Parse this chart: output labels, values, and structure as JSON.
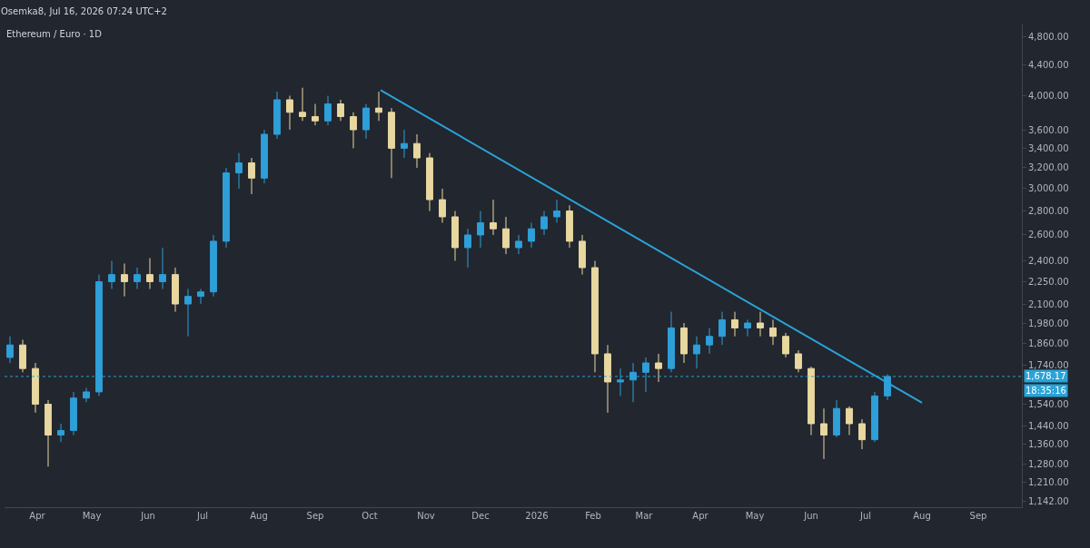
{
  "chart_data": {
    "type": "candlestick",
    "title": "Ethereum / Euro · 1D",
    "annotations": [
      "Osemka8, Jul 16, 2026 07:24 UTC+2",
      "18:35:16"
    ],
    "log": "y",
    "grid": false,
    "xlim": [
      "2025-03-14",
      "2026-09-25"
    ],
    "xticks": [
      {
        "value": "2025-04-01",
        "label": "Apr"
      },
      {
        "value": "2025-05-01",
        "label": "May"
      },
      {
        "value": "2025-06-01",
        "label": "Jun"
      },
      {
        "value": "2025-07-01",
        "label": "Jul"
      },
      {
        "value": "2025-08-01",
        "label": "Aug"
      },
      {
        "value": "2025-09-01",
        "label": "Sep"
      },
      {
        "value": "2025-10-01",
        "label": "Oct"
      },
      {
        "value": "2025-11-01",
        "label": "Nov"
      },
      {
        "value": "2025-12-01",
        "label": "Dec"
      },
      {
        "value": "2026-01-01",
        "label": "2026"
      },
      {
        "value": "2026-02-01",
        "label": "Feb"
      },
      {
        "value": "2026-03-01",
        "label": "Mar"
      },
      {
        "value": "2026-04-01",
        "label": "Apr"
      },
      {
        "value": "2026-05-01",
        "label": "May"
      },
      {
        "value": "2026-06-01",
        "label": "Jun"
      },
      {
        "value": "2026-07-01",
        "label": "Jul"
      },
      {
        "value": "2026-08-01",
        "label": "Aug"
      },
      {
        "value": "2026-09-01",
        "label": "Sep"
      }
    ],
    "ylim": [
      1120,
      5000
    ],
    "yticks": [
      {
        "value": 1142,
        "label": "1,142.00"
      },
      {
        "value": 1210,
        "label": "1,210.00"
      },
      {
        "value": 1280,
        "label": "1,280.00"
      },
      {
        "value": 1360,
        "label": "1,360.00"
      },
      {
        "value": 1440,
        "label": "1,440.00"
      },
      {
        "value": 1540,
        "label": "1,540.00"
      },
      {
        "value": 1740,
        "label": "1,740.00"
      },
      {
        "value": 1860,
        "label": "1,860.00"
      },
      {
        "value": 1980,
        "label": "1,980.00"
      },
      {
        "value": 2100,
        "label": "2,100.00"
      },
      {
        "value": 2250,
        "label": "2,250.00"
      },
      {
        "value": 2400,
        "label": "2,400.00"
      },
      {
        "value": 2600,
        "label": "2,600.00"
      },
      {
        "value": 2800,
        "label": "2,800.00"
      },
      {
        "value": 3000,
        "label": "3,000.00"
      },
      {
        "value": 3200,
        "label": "3,200.00"
      },
      {
        "value": 3400,
        "label": "3,400.00"
      },
      {
        "value": 3600,
        "label": "3,600.00"
      },
      {
        "value": 4000,
        "label": "4,000.00"
      },
      {
        "value": 4400,
        "label": "4,400.00"
      },
      {
        "value": 4800,
        "label": "4,800.00"
      }
    ],
    "ref_lines": [
      {
        "axis": "y",
        "value": 1678.17,
        "label": "1,678.17",
        "color": "#29a3d8",
        "line_style": "dotted"
      }
    ],
    "series": [
      {
        "x": [
          "2025-03-17",
          "2025-03-24",
          "2025-03-31",
          "2025-04-07",
          "2025-04-14",
          "2025-04-21",
          "2025-04-28",
          "2025-05-05",
          "2025-05-12",
          "2025-05-19",
          "2025-05-26",
          "2025-06-02",
          "2025-06-09",
          "2025-06-16",
          "2025-06-23",
          "2025-06-30",
          "2025-07-07",
          "2025-07-14",
          "2025-07-21",
          "2025-07-28",
          "2025-08-04",
          "2025-08-11",
          "2025-08-18",
          "2025-08-25",
          "2025-09-01",
          "2025-09-08",
          "2025-09-15",
          "2025-09-22",
          "2025-09-29",
          "2025-10-06",
          "2025-10-13",
          "2025-10-20",
          "2025-10-27",
          "2025-11-03",
          "2025-11-10",
          "2025-11-17",
          "2025-11-24",
          "2025-12-01",
          "2025-12-08",
          "2025-12-15",
          "2025-12-22",
          "2025-12-29",
          "2026-01-05",
          "2026-01-12",
          "2026-01-19",
          "2026-01-26",
          "2026-02-02",
          "2026-02-09",
          "2026-02-16",
          "2026-02-23",
          "2026-03-02",
          "2026-03-09",
          "2026-03-16",
          "2026-03-23",
          "2026-03-30",
          "2026-04-06",
          "2026-04-13",
          "2026-04-20",
          "2026-04-27",
          "2026-05-04",
          "2026-05-11",
          "2026-05-18",
          "2026-05-25",
          "2026-06-01",
          "2026-06-08",
          "2026-06-15",
          "2026-06-22",
          "2026-06-29",
          "2026-07-06",
          "2026-07-13"
        ],
        "ohlc": [
          [
            1780,
            1900,
            1750,
            1850
          ],
          [
            1850,
            1880,
            1700,
            1720
          ],
          [
            1720,
            1750,
            1500,
            1540
          ],
          [
            1540,
            1560,
            1270,
            1400
          ],
          [
            1400,
            1450,
            1370,
            1420
          ],
          [
            1420,
            1600,
            1400,
            1570
          ],
          [
            1570,
            1620,
            1550,
            1600
          ],
          [
            1600,
            2300,
            1580,
            2250
          ],
          [
            2250,
            2400,
            2200,
            2300
          ],
          [
            2300,
            2380,
            2150,
            2250
          ],
          [
            2250,
            2350,
            2200,
            2300
          ],
          [
            2300,
            2420,
            2200,
            2250
          ],
          [
            2250,
            2500,
            2200,
            2300
          ],
          [
            2300,
            2350,
            2050,
            2100
          ],
          [
            2100,
            2200,
            1900,
            2150
          ],
          [
            2150,
            2200,
            2100,
            2180
          ],
          [
            2180,
            2600,
            2150,
            2550
          ],
          [
            2550,
            3200,
            2500,
            3150
          ],
          [
            3150,
            3350,
            3000,
            3250
          ],
          [
            3250,
            3300,
            2950,
            3100
          ],
          [
            3100,
            3600,
            3050,
            3550
          ],
          [
            3550,
            4050,
            3500,
            3950
          ],
          [
            3950,
            4000,
            3600,
            3800
          ],
          [
            3800,
            4100,
            3700,
            3750
          ],
          [
            3750,
            3900,
            3650,
            3700
          ],
          [
            3700,
            4000,
            3650,
            3900
          ],
          [
            3900,
            3950,
            3700,
            3750
          ],
          [
            3750,
            3800,
            3400,
            3600
          ],
          [
            3600,
            3900,
            3500,
            3850
          ],
          [
            3850,
            4050,
            3700,
            3800
          ],
          [
            3800,
            3850,
            3100,
            3400
          ],
          [
            3400,
            3600,
            3300,
            3450
          ],
          [
            3450,
            3550,
            3200,
            3300
          ],
          [
            3300,
            3350,
            2800,
            2900
          ],
          [
            2900,
            3000,
            2700,
            2750
          ],
          [
            2750,
            2800,
            2400,
            2500
          ],
          [
            2500,
            2650,
            2350,
            2600
          ],
          [
            2600,
            2800,
            2500,
            2700
          ],
          [
            2700,
            2900,
            2600,
            2650
          ],
          [
            2650,
            2750,
            2450,
            2500
          ],
          [
            2500,
            2600,
            2450,
            2550
          ],
          [
            2550,
            2700,
            2500,
            2650
          ],
          [
            2650,
            2800,
            2600,
            2750
          ],
          [
            2750,
            2900,
            2700,
            2800
          ],
          [
            2800,
            2850,
            2500,
            2550
          ],
          [
            2550,
            2600,
            2300,
            2350
          ],
          [
            2350,
            2400,
            1700,
            1800
          ],
          [
            1800,
            1850,
            1500,
            1650
          ],
          [
            1650,
            1720,
            1580,
            1660
          ],
          [
            1660,
            1750,
            1550,
            1700
          ],
          [
            1700,
            1780,
            1600,
            1750
          ],
          [
            1750,
            1800,
            1650,
            1720
          ],
          [
            1720,
            2050,
            1700,
            1950
          ],
          [
            1950,
            1980,
            1750,
            1800
          ],
          [
            1800,
            1900,
            1720,
            1850
          ],
          [
            1850,
            1950,
            1800,
            1900
          ],
          [
            1900,
            2050,
            1850,
            2000
          ],
          [
            2000,
            2050,
            1900,
            1950
          ],
          [
            1950,
            2000,
            1900,
            1980
          ],
          [
            1980,
            2050,
            1900,
            1950
          ],
          [
            1950,
            2000,
            1850,
            1900
          ],
          [
            1900,
            1920,
            1780,
            1800
          ],
          [
            1800,
            1820,
            1700,
            1720
          ],
          [
            1720,
            1730,
            1400,
            1450
          ],
          [
            1450,
            1520,
            1300,
            1400
          ],
          [
            1400,
            1560,
            1390,
            1520
          ],
          [
            1520,
            1530,
            1400,
            1450
          ],
          [
            1450,
            1470,
            1340,
            1380
          ],
          [
            1380,
            1600,
            1370,
            1580
          ],
          [
            1580,
            1690,
            1560,
            1678.17
          ]
        ],
        "colors": [
          "#2e9fd9",
          "#e8d8a0",
          "#e8d8a0",
          "#e8d8a0",
          "#2e9fd9",
          "#2e9fd9",
          "#2e9fd9",
          "#2e9fd9",
          "#2e9fd9",
          "#e8d8a0",
          "#2e9fd9",
          "#e8d8a0",
          "#2e9fd9",
          "#e8d8a0",
          "#2e9fd9",
          "#2e9fd9",
          "#2e9fd9",
          "#2e9fd9",
          "#2e9fd9",
          "#e8d8a0",
          "#2e9fd9",
          "#2e9fd9",
          "#e8d8a0",
          "#e8d8a0",
          "#e8d8a0",
          "#2e9fd9",
          "#e8d8a0",
          "#e8d8a0",
          "#2e9fd9",
          "#e8d8a0",
          "#e8d8a0",
          "#2e9fd9",
          "#e8d8a0",
          "#e8d8a0",
          "#e8d8a0",
          "#e8d8a0",
          "#2e9fd9",
          "#2e9fd9",
          "#e8d8a0",
          "#e8d8a0",
          "#2e9fd9",
          "#2e9fd9",
          "#2e9fd9",
          "#2e9fd9",
          "#e8d8a0",
          "#e8d8a0",
          "#e8d8a0",
          "#e8d8a0",
          "#2e9fd9",
          "#2e9fd9",
          "#2e9fd9",
          "#e8d8a0",
          "#2e9fd9",
          "#e8d8a0",
          "#2e9fd9",
          "#2e9fd9",
          "#2e9fd9",
          "#e8d8a0",
          "#2e9fd9",
          "#e8d8a0",
          "#e8d8a0",
          "#e8d8a0",
          "#e8d8a0",
          "#e8d8a0",
          "#e8d8a0",
          "#2e9fd9",
          "#e8d8a0",
          "#e8d8a0",
          "#2e9fd9",
          "#2e9fd9"
        ]
      },
      {
        "type": "line",
        "x": [
          "2025-10-07",
          "2026-08-01"
        ],
        "values": [
          4070,
          1547
        ],
        "color": "#29a3d8"
      }
    ]
  }
}
